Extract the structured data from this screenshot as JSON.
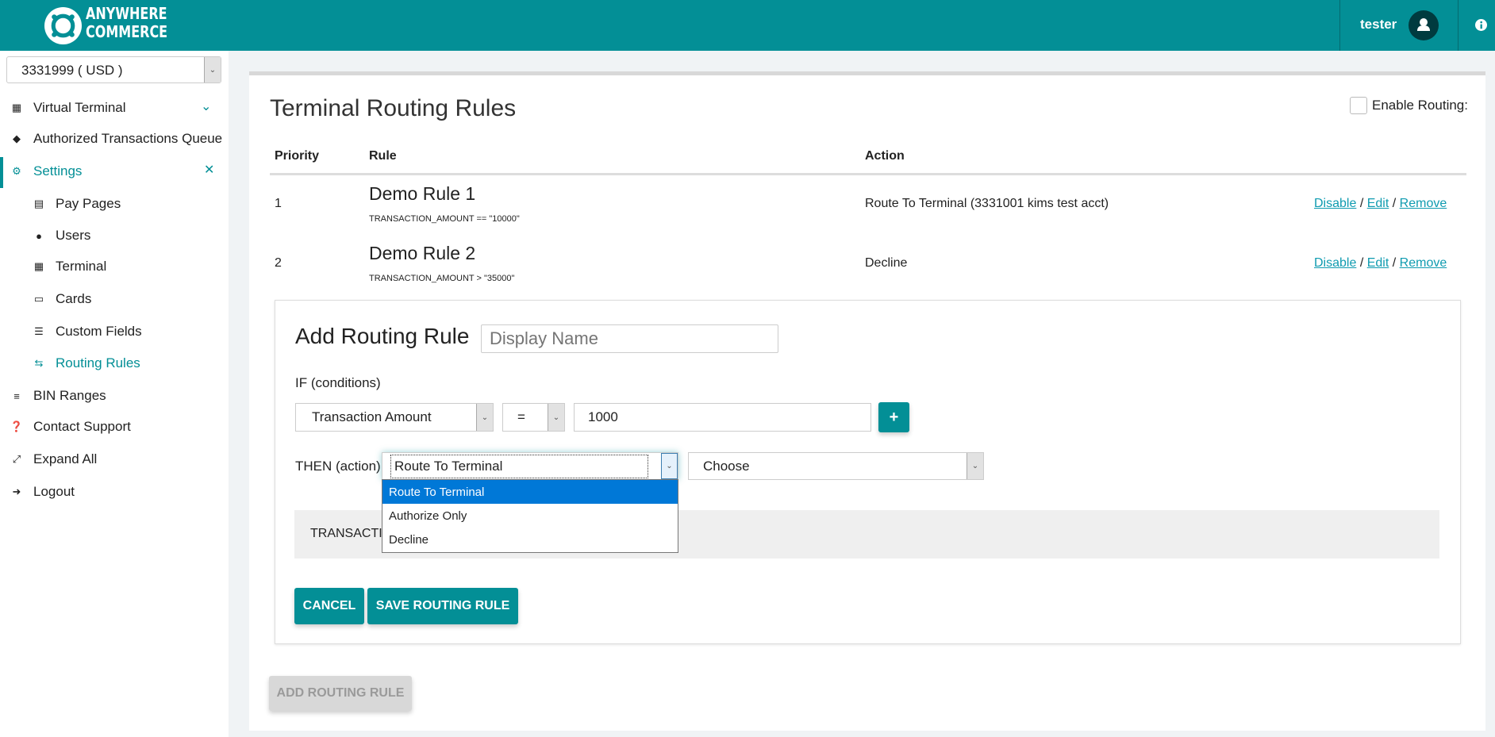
{
  "header": {
    "brand_line1": "ANYWHERE",
    "brand_line2": "COMMERCE",
    "username": "tester",
    "brand_color": "#038f96"
  },
  "sidebar": {
    "account_select": "3331999 ( USD )",
    "items": [
      {
        "label": "Virtual Terminal",
        "icon": "calculator-icon"
      },
      {
        "label": "Authorized Transactions Queue",
        "icon": "ticket-icon"
      },
      {
        "label": "Settings",
        "icon": "cogs-icon"
      },
      {
        "label": "Pay Pages",
        "icon": "file-code-icon"
      },
      {
        "label": "Users",
        "icon": "users-icon"
      },
      {
        "label": "Terminal",
        "icon": "calculator-icon"
      },
      {
        "label": "Cards",
        "icon": "credit-card-icon"
      },
      {
        "label": "Custom Fields",
        "icon": "list-icon"
      },
      {
        "label": "Routing Rules",
        "icon": "exchange-icon"
      },
      {
        "label": "BIN Ranges",
        "icon": "list-ol-icon"
      },
      {
        "label": "Contact Support",
        "icon": "question-circle-icon"
      },
      {
        "label": "Expand All",
        "icon": "expand-icon"
      },
      {
        "label": "Logout",
        "icon": "sign-out-icon"
      }
    ]
  },
  "main": {
    "title": "Terminal Routing Rules",
    "enable_routing_label": "Enable Routing:",
    "enable_routing_checked": false,
    "columns": [
      "Priority",
      "Rule",
      "Action"
    ],
    "rules": [
      {
        "priority": "1",
        "name": "Demo Rule 1",
        "condition": "TRANSACTION_AMOUNT == \"10000\"",
        "action": "Route To Terminal (3331001 kims test acct)"
      },
      {
        "priority": "2",
        "name": "Demo Rule 2",
        "condition": "TRANSACTION_AMOUNT > \"35000\"",
        "action": "Decline"
      }
    ],
    "links": {
      "disable": "Disable",
      "edit": "Edit",
      "remove": "Remove",
      "sep": "/"
    },
    "form": {
      "title": "Add Routing Rule",
      "name_placeholder": "Display Name",
      "if_label": "IF (conditions)",
      "field": "Transaction Amount",
      "operator": "=",
      "value": "1000",
      "add": "+",
      "then_label": "THEN (action)",
      "action": "Route To Terminal",
      "target": "Choose",
      "action_options": [
        "Route To Terminal",
        "Authorize Only",
        "Decline"
      ],
      "summary": "TRANSACTI",
      "cancel": "CANCEL",
      "save": "SAVE ROUTING RULE"
    },
    "add_rule_button": "ADD ROUTING RULE"
  }
}
